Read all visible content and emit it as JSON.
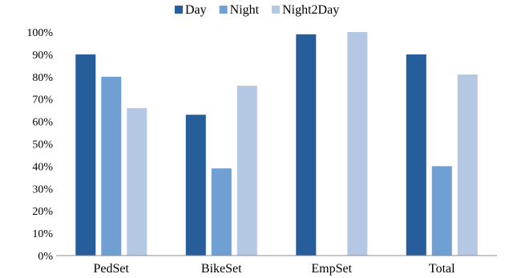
{
  "chart_data": {
    "type": "bar",
    "categories": [
      "PedSet",
      "BikeSet",
      "EmpSet",
      "Total"
    ],
    "series": [
      {
        "name": "Day",
        "color": "#255e9a",
        "values": [
          90,
          63,
          99,
          90
        ]
      },
      {
        "name": "Night",
        "color": "#6f9fd3",
        "values": [
          80,
          39,
          0,
          40
        ]
      },
      {
        "name": "Night2Day",
        "color": "#b4c8e4",
        "values": [
          66,
          76,
          100,
          81
        ]
      }
    ],
    "ylim": [
      0,
      100
    ],
    "yticks": [
      "0%",
      "10%",
      "20%",
      "30%",
      "40%",
      "50%",
      "60%",
      "70%",
      "80%",
      "90%",
      "100%"
    ],
    "grid": false,
    "legend": "top-center",
    "title": "",
    "xlabel": "",
    "ylabel": ""
  }
}
